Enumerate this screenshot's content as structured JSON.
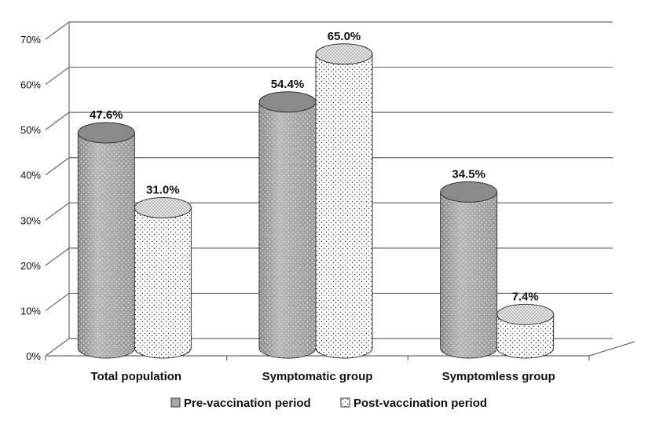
{
  "chart_data": {
    "type": "bar",
    "categories": [
      "Total population",
      "Symptomatic group",
      "Symptomless group"
    ],
    "series": [
      {
        "name": "Pre-vaccination period",
        "values": [
          47.6,
          54.4,
          34.5
        ],
        "labels": [
          "47.6%",
          "54.4%",
          "34.5%"
        ]
      },
      {
        "name": "Post-vaccination period",
        "values": [
          31.0,
          65.0,
          7.4
        ],
        "labels": [
          "31.0%",
          "65.0%",
          "7.4%"
        ]
      }
    ],
    "ylim": [
      0,
      70
    ],
    "yticks": [
      "0%",
      "10%",
      "20%",
      "30%",
      "40%",
      "50%",
      "60%",
      "70%"
    ],
    "title": "",
    "xlabel": "",
    "ylabel": "",
    "legend_position": "bottom",
    "grid": true,
    "colors": {
      "pre": "#a9a9a9",
      "pre_top": "#8a8a8a",
      "post": "#ffffff",
      "post_top": "#e6e6e6",
      "grid": "#6b6b6b"
    }
  }
}
